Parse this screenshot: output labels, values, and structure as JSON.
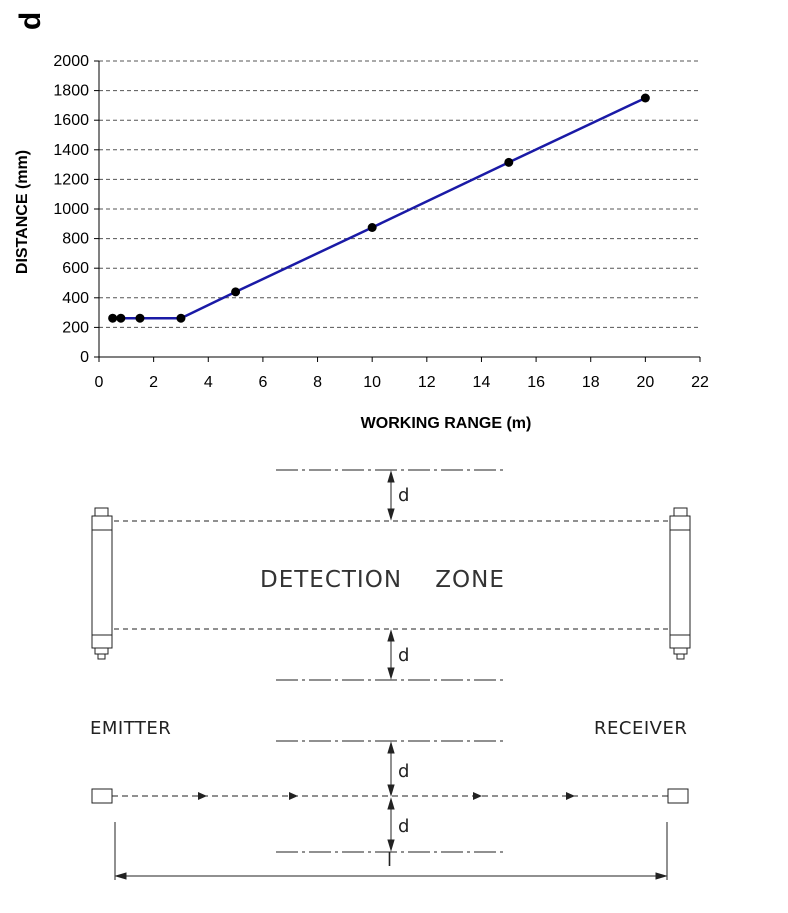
{
  "corner_label": "d",
  "chart_data": {
    "type": "line",
    "title": "",
    "xlabel": "WORKING RANGE (m)",
    "ylabel": "DISTANCE (mm)",
    "xlim": [
      0,
      22
    ],
    "ylim": [
      0,
      2000
    ],
    "xticks": [
      "0",
      "2",
      "4",
      "6",
      "8",
      "10",
      "12",
      "14",
      "16",
      "18",
      "20",
      "22"
    ],
    "yticks": [
      "0",
      "200",
      "400",
      "600",
      "800",
      "1000",
      "1200",
      "1400",
      "1600",
      "1800",
      "2000"
    ],
    "grid": "horizontal dashed",
    "legend": "none",
    "series": [
      {
        "color": "#1a1aa6",
        "points": [
          {
            "x": 0.5,
            "y": 262
          },
          {
            "x": 0.8,
            "y": 262
          },
          {
            "x": 1.5,
            "y": 262
          },
          {
            "x": 3,
            "y": 262
          },
          {
            "x": 5,
            "y": 440
          },
          {
            "x": 10,
            "y": 875
          },
          {
            "x": 15,
            "y": 1315
          },
          {
            "x": 20,
            "y": 1750
          }
        ]
      }
    ]
  },
  "diagram": {
    "zone_label": "DETECTION    ZONE",
    "emitter_label": "EMITTER",
    "receiver_label": "RECEIVER",
    "distance_symbol": "d",
    "length_symbol": "l"
  }
}
